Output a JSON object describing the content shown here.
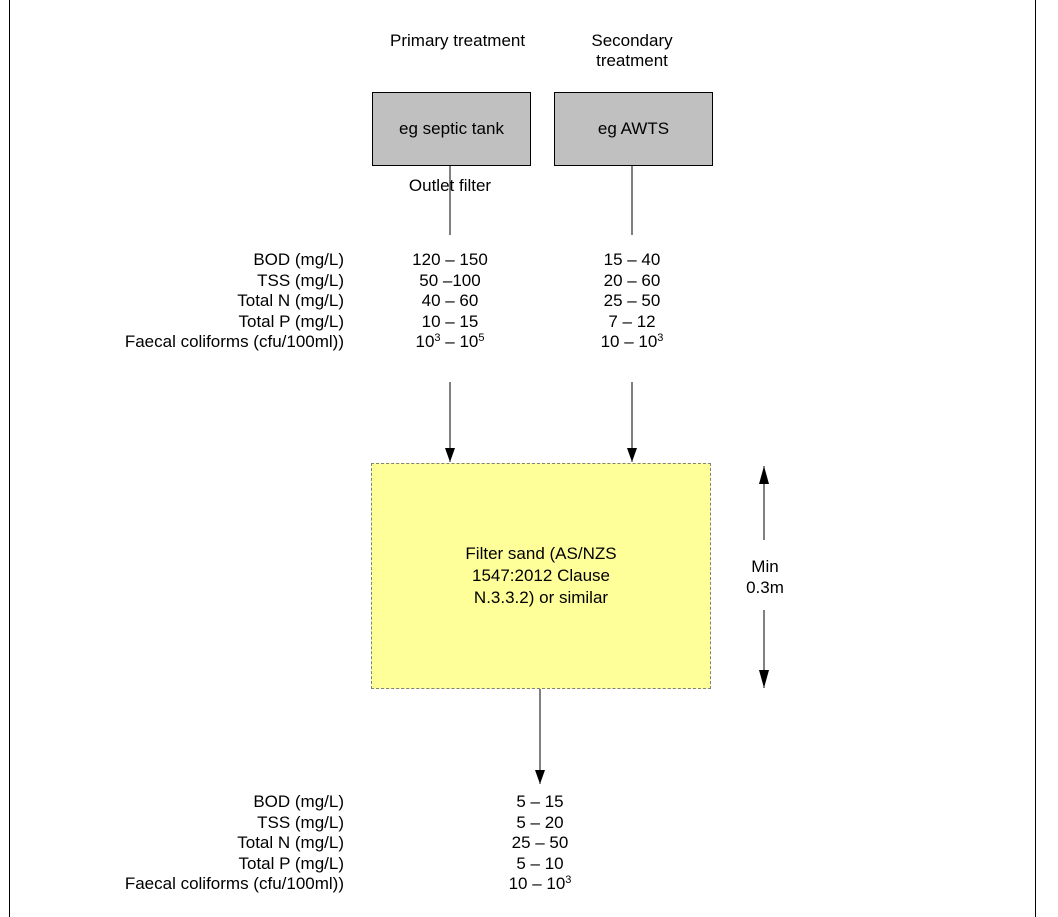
{
  "headers": {
    "primary": "Primary treatment",
    "secondary": "Secondary treatment"
  },
  "boxes": {
    "primary": "eg septic tank",
    "secondary": "eg AWTS",
    "filter": "Filter sand (AS/NZS 1547:2012 Clause N.3.3.2) or similar"
  },
  "outlet_filter": "Outlet filter",
  "min_depth": "Min 0.3m",
  "parameters": [
    "BOD (mg/L)",
    "TSS (mg/L)",
    "Total N (mg/L)",
    "Total P (mg/L)",
    "Faecal coliforms (cfu/100ml))"
  ],
  "primary_values": {
    "bod": "120 – 150",
    "tss": "50 –100",
    "total_n": "40 – 60",
    "total_p": "10 – 15",
    "faecal_base1": "10",
    "faecal_exp1": "3",
    "faecal_sep": " – 10",
    "faecal_exp2": "5"
  },
  "secondary_values": {
    "bod": "15 – 40",
    "tss": "20 – 60",
    "total_n": "25 – 50",
    "total_p": "7 – 12",
    "faecal_base": "10 – 10",
    "faecal_exp": "3"
  },
  "output_values": {
    "bod": "5 – 15",
    "tss": "5 – 20",
    "total_n": "25 – 50",
    "total_p": "5 – 10",
    "faecal_base": "10 – 10",
    "faecal_exp": "3"
  },
  "colors": {
    "tank_fill": "#c0c0c0",
    "sand_fill": "#ffff99",
    "line": "#000000"
  }
}
